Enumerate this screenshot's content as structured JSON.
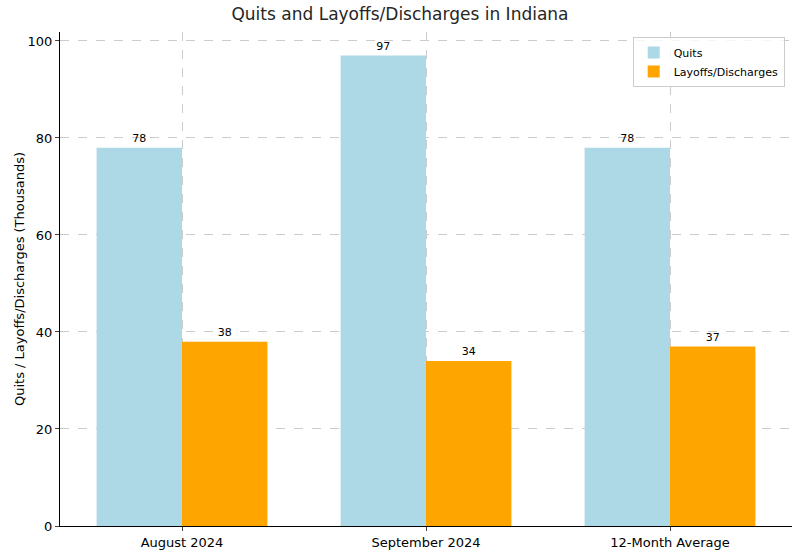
{
  "chart_data": {
    "type": "bar",
    "title": "Quits and Layoffs/Discharges in Indiana",
    "y_label": "Quits / Layoffs/Discharges (Thousands)",
    "categories": [
      "August 2024",
      "September 2024",
      "12-Month Average"
    ],
    "series": [
      {
        "name": "Quits",
        "color": "#add8e6",
        "values": [
          78,
          97,
          78
        ]
      },
      {
        "name": "Layoffs/Discharges",
        "color": "#ffa500",
        "values": [
          38,
          34,
          37
        ]
      }
    ],
    "ylim": [
      0,
      101.85
    ],
    "yticks": [
      0,
      20,
      40,
      60,
      80,
      100
    ],
    "grid": true,
    "legend": "upper right",
    "data_labels": true
  }
}
